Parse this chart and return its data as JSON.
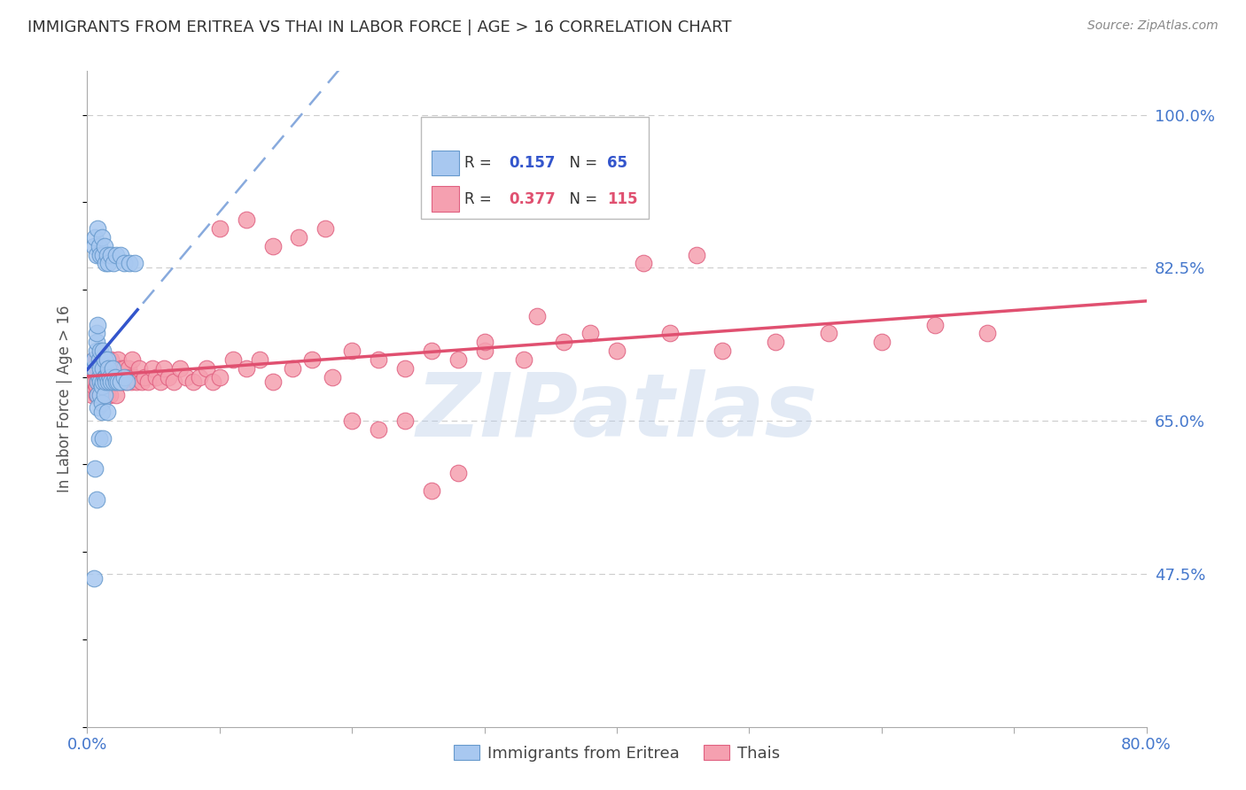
{
  "title": "IMMIGRANTS FROM ERITREA VS THAI IN LABOR FORCE | AGE > 16 CORRELATION CHART",
  "source": "Source: ZipAtlas.com",
  "ylabel": "In Labor Force | Age > 16",
  "y_ticks_right": [
    "100.0%",
    "82.5%",
    "65.0%",
    "47.5%"
  ],
  "y_tick_values": [
    1.0,
    0.825,
    0.65,
    0.475
  ],
  "xlim": [
    0.0,
    0.8
  ],
  "ylim": [
    0.3,
    1.05
  ],
  "eritrea_color": "#a8c8f0",
  "eritrea_edge_color": "#6699cc",
  "thai_color": "#f5a0b0",
  "thai_edge_color": "#e06080",
  "eritrea_R": 0.157,
  "eritrea_N": 65,
  "thai_R": 0.377,
  "thai_N": 115,
  "legend_label_eritrea": "Immigrants from Eritrea",
  "legend_label_thai": "Thais",
  "watermark": "ZIPatlas",
  "background_color": "#ffffff",
  "grid_color": "#cccccc",
  "axis_label_color": "#4477cc",
  "title_color": "#333333",
  "eritrea_scatter_x": [
    0.005,
    0.005,
    0.007,
    0.007,
    0.007,
    0.008,
    0.008,
    0.008,
    0.008,
    0.009,
    0.009,
    0.01,
    0.01,
    0.01,
    0.01,
    0.011,
    0.011,
    0.011,
    0.012,
    0.012,
    0.012,
    0.013,
    0.013,
    0.013,
    0.014,
    0.014,
    0.015,
    0.015,
    0.016,
    0.016,
    0.017,
    0.018,
    0.019,
    0.02,
    0.021,
    0.022,
    0.023,
    0.025,
    0.028,
    0.03,
    0.005,
    0.006,
    0.007,
    0.008,
    0.009,
    0.01,
    0.011,
    0.012,
    0.013,
    0.014,
    0.015,
    0.016,
    0.018,
    0.02,
    0.022,
    0.025,
    0.028,
    0.032,
    0.036,
    0.005,
    0.006,
    0.007,
    0.009,
    0.012,
    0.015
  ],
  "eritrea_scatter_y": [
    0.71,
    0.72,
    0.73,
    0.74,
    0.75,
    0.76,
    0.695,
    0.68,
    0.665,
    0.7,
    0.72,
    0.73,
    0.695,
    0.71,
    0.68,
    0.67,
    0.66,
    0.69,
    0.73,
    0.695,
    0.71,
    0.68,
    0.72,
    0.7,
    0.7,
    0.695,
    0.72,
    0.7,
    0.695,
    0.71,
    0.7,
    0.695,
    0.71,
    0.695,
    0.7,
    0.695,
    0.695,
    0.695,
    0.7,
    0.695,
    0.85,
    0.86,
    0.84,
    0.87,
    0.85,
    0.84,
    0.86,
    0.84,
    0.85,
    0.83,
    0.84,
    0.83,
    0.84,
    0.83,
    0.84,
    0.84,
    0.83,
    0.83,
    0.83,
    0.47,
    0.595,
    0.56,
    0.63,
    0.63,
    0.66
  ],
  "thai_scatter_x": [
    0.003,
    0.003,
    0.004,
    0.004,
    0.004,
    0.005,
    0.005,
    0.005,
    0.005,
    0.006,
    0.006,
    0.006,
    0.006,
    0.007,
    0.007,
    0.007,
    0.008,
    0.008,
    0.008,
    0.008,
    0.009,
    0.009,
    0.009,
    0.01,
    0.01,
    0.01,
    0.011,
    0.011,
    0.012,
    0.012,
    0.013,
    0.013,
    0.014,
    0.014,
    0.015,
    0.015,
    0.016,
    0.016,
    0.017,
    0.017,
    0.018,
    0.018,
    0.019,
    0.02,
    0.021,
    0.022,
    0.023,
    0.024,
    0.025,
    0.026,
    0.027,
    0.028,
    0.029,
    0.03,
    0.031,
    0.032,
    0.033,
    0.034,
    0.035,
    0.037,
    0.039,
    0.041,
    0.043,
    0.046,
    0.049,
    0.052,
    0.055,
    0.058,
    0.061,
    0.065,
    0.07,
    0.075,
    0.08,
    0.085,
    0.09,
    0.095,
    0.1,
    0.11,
    0.12,
    0.13,
    0.14,
    0.155,
    0.17,
    0.185,
    0.2,
    0.22,
    0.24,
    0.26,
    0.28,
    0.3,
    0.33,
    0.36,
    0.4,
    0.44,
    0.48,
    0.52,
    0.56,
    0.6,
    0.64,
    0.68,
    0.1,
    0.12,
    0.14,
    0.16,
    0.18,
    0.2,
    0.22,
    0.24,
    0.26,
    0.28,
    0.3,
    0.34,
    0.38,
    0.42,
    0.46
  ],
  "thai_scatter_y": [
    0.695,
    0.7,
    0.695,
    0.7,
    0.68,
    0.72,
    0.71,
    0.69,
    0.695,
    0.695,
    0.7,
    0.71,
    0.695,
    0.68,
    0.72,
    0.69,
    0.71,
    0.695,
    0.7,
    0.68,
    0.72,
    0.7,
    0.695,
    0.71,
    0.68,
    0.72,
    0.7,
    0.695,
    0.71,
    0.68,
    0.72,
    0.7,
    0.695,
    0.71,
    0.68,
    0.72,
    0.7,
    0.695,
    0.71,
    0.68,
    0.72,
    0.7,
    0.695,
    0.71,
    0.695,
    0.68,
    0.72,
    0.7,
    0.695,
    0.71,
    0.695,
    0.71,
    0.7,
    0.695,
    0.71,
    0.7,
    0.695,
    0.72,
    0.7,
    0.695,
    0.71,
    0.695,
    0.7,
    0.695,
    0.71,
    0.7,
    0.695,
    0.71,
    0.7,
    0.695,
    0.71,
    0.7,
    0.695,
    0.7,
    0.71,
    0.695,
    0.7,
    0.72,
    0.71,
    0.72,
    0.695,
    0.71,
    0.72,
    0.7,
    0.73,
    0.72,
    0.71,
    0.73,
    0.72,
    0.73,
    0.72,
    0.74,
    0.73,
    0.75,
    0.73,
    0.74,
    0.75,
    0.74,
    0.76,
    0.75,
    0.87,
    0.88,
    0.85,
    0.86,
    0.87,
    0.65,
    0.64,
    0.65,
    0.57,
    0.59,
    0.74,
    0.77,
    0.75,
    0.83,
    0.84
  ]
}
